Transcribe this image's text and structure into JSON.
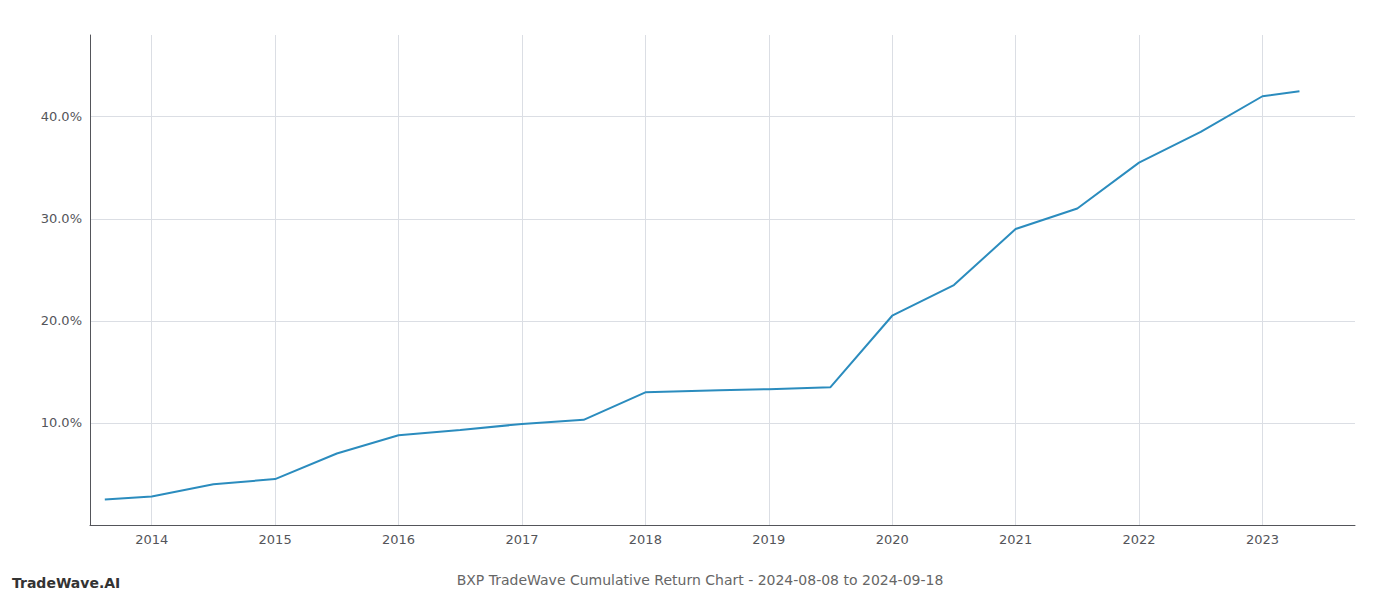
{
  "chart_data": {
    "type": "line",
    "title": "BXP TradeWave Cumulative Return Chart - 2024-08-08 to 2024-09-18",
    "annotations": [
      "TradeWave.AI"
    ],
    "x": [
      2013.62,
      2014.0,
      2014.5,
      2015.0,
      2015.5,
      2016.0,
      2016.5,
      2017.0,
      2017.5,
      2018.0,
      2018.6,
      2019.0,
      2019.5,
      2020.0,
      2020.5,
      2021.0,
      2021.5,
      2022.0,
      2022.5,
      2023.0,
      2023.3
    ],
    "values": [
      2.5,
      2.8,
      4.0,
      4.5,
      7.0,
      8.8,
      9.3,
      9.9,
      10.3,
      13.0,
      13.2,
      13.3,
      13.5,
      20.5,
      23.5,
      29.0,
      31.0,
      35.5,
      38.5,
      42.0,
      42.5
    ],
    "color": "#2b8cbe",
    "xlim": [
      2013.5,
      2023.75
    ],
    "ylim": [
      0,
      48
    ],
    "xticks": [
      2014,
      2015,
      2016,
      2017,
      2018,
      2019,
      2020,
      2021,
      2022,
      2023
    ],
    "yticks": [
      {
        "value": 10.0,
        "label": "10.0%"
      },
      {
        "value": 20.0,
        "label": "20.0%"
      },
      {
        "value": 30.0,
        "label": "30.0%"
      },
      {
        "value": 40.0,
        "label": "40.0%"
      }
    ],
    "grid": true
  }
}
